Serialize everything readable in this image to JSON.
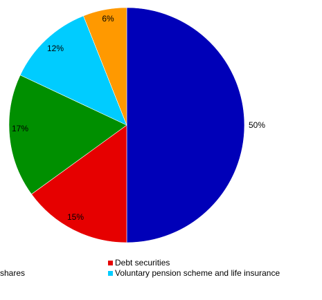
{
  "chart_data": {
    "type": "pie",
    "title": "",
    "slices": [
      {
        "label": "",
        "value": 50,
        "value_label": "50%",
        "color": "#0000b8"
      },
      {
        "label": "Debt securities",
        "value": 15,
        "value_label": "15%",
        "color": "#e60000"
      },
      {
        "label": "",
        "value": 17,
        "value_label": "17%",
        "color": "#008f00"
      },
      {
        "label": "Voluntary pension scheme and life insurance",
        "value": 12,
        "value_label": "12%",
        "color": "#00ccff"
      },
      {
        "label": "",
        "value": 6,
        "value_label": "6%",
        "color": "#ff9900"
      }
    ],
    "legend": {
      "placement": "bottom",
      "items": [
        {
          "label": "Debt securities",
          "color": "#e60000"
        },
        {
          "label": "shares",
          "color": null
        },
        {
          "label": "Voluntary pension scheme and life insurance",
          "color": "#00ccff"
        }
      ]
    }
  }
}
